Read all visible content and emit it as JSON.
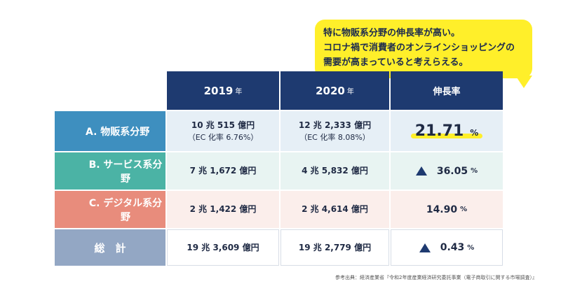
{
  "callout": {
    "line1": "特に物販系分野の伸長率が高い。",
    "line2": "コロナ禍で消費者のオンラインショッピングの",
    "line3": "需要が高まっていると考えらえる。"
  },
  "header": {
    "col1_year": "2019",
    "col2_year": "2020",
    "year_suffix": "年",
    "col3": "伸長率"
  },
  "rows": [
    {
      "label": "A. 物販系分野",
      "v2019": "10 兆 515 億円",
      "v2019_sub": "（EC 化率 6.76%）",
      "v2020": "12 兆 2,333 億円",
      "v2020_sub": "（EC 化率 8.08%）",
      "rate": "21.71",
      "unit": "%"
    },
    {
      "label": "B. サービス系分野",
      "v2019": "7 兆 1,672 億円",
      "v2020": "4 兆 5,832 億円",
      "rate": "36.05",
      "unit": "%"
    },
    {
      "label": "C. デジタル系分野",
      "v2019": "2 兆 1,422 億円",
      "v2020": "2 兆 4,614 億円",
      "rate": "14.90",
      "unit": "%"
    },
    {
      "label": "総　計",
      "v2019": "19 兆 3,609 億円",
      "v2020": "19 兆 2,779 億円",
      "rate": "0.43",
      "unit": "%"
    }
  ],
  "colors": {
    "header": "#1e3a70",
    "row_a": "#3e8fbf",
    "row_b": "#4bb3a5",
    "row_c": "#e88c7c",
    "row_total": "#93a7c4",
    "callout": "#ffef2a"
  },
  "footnote": "参考出典：経済産業省『令和2年度産業経済研究委託事業（電子商取引に関する市場調査）』"
}
